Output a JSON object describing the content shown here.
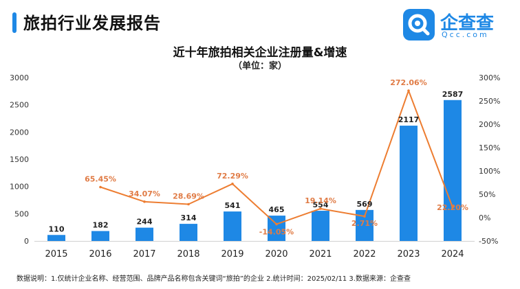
{
  "header": {
    "report_title": "旅拍行业发展报告",
    "logo_text": "企查查",
    "logo_subtext": "Qcc.com",
    "logo_icon": "qcc-logo-icon"
  },
  "chart_data": {
    "type": "bar",
    "title": "近十年旅拍相关企业注册量&增速",
    "subtitle": "（单位：家）",
    "categories": [
      "2015",
      "2016",
      "2017",
      "2018",
      "2019",
      "2020",
      "2021",
      "2022",
      "2023",
      "2024"
    ],
    "series": [
      {
        "type": "bar",
        "axis": "left",
        "values": [
          110,
          182,
          244,
          314,
          541,
          465,
          554,
          569,
          2117,
          2587
        ],
        "labels": [
          "110",
          "182",
          "244",
          "314",
          "541",
          "465",
          "554",
          "569",
          "2117",
          "2587"
        ],
        "color": "#1e88e5"
      },
      {
        "type": "line",
        "axis": "right",
        "values": [
          null,
          65.45,
          34.07,
          28.69,
          72.29,
          -14.05,
          19.14,
          2.71,
          272.06,
          22.2
        ],
        "labels": [
          null,
          "65.45%",
          "34.07%",
          "28.69%",
          "72.29%",
          "-14.05%",
          "19.14%",
          "2.71%",
          "272.06%",
          "22.20%"
        ],
        "color": "#ed7d31"
      }
    ],
    "y_left": {
      "ylim": [
        0,
        3000
      ],
      "ticks": [
        "0",
        "500",
        "1000",
        "1500",
        "2000",
        "2500",
        "3000"
      ]
    },
    "y_right": {
      "ylim": [
        -50,
        300
      ],
      "ticks": [
        "-50%",
        "0%",
        "50%",
        "100%",
        "150%",
        "200%",
        "250%",
        "300%"
      ]
    },
    "grid": false,
    "legend": "none"
  },
  "footer": {
    "note": "数据说明：1.仅统计企业名称、经营范围、品牌产品名称包含关键词“旅拍”的企业  2.统计时间：2025/02/11  3.数据来源：企查查"
  }
}
